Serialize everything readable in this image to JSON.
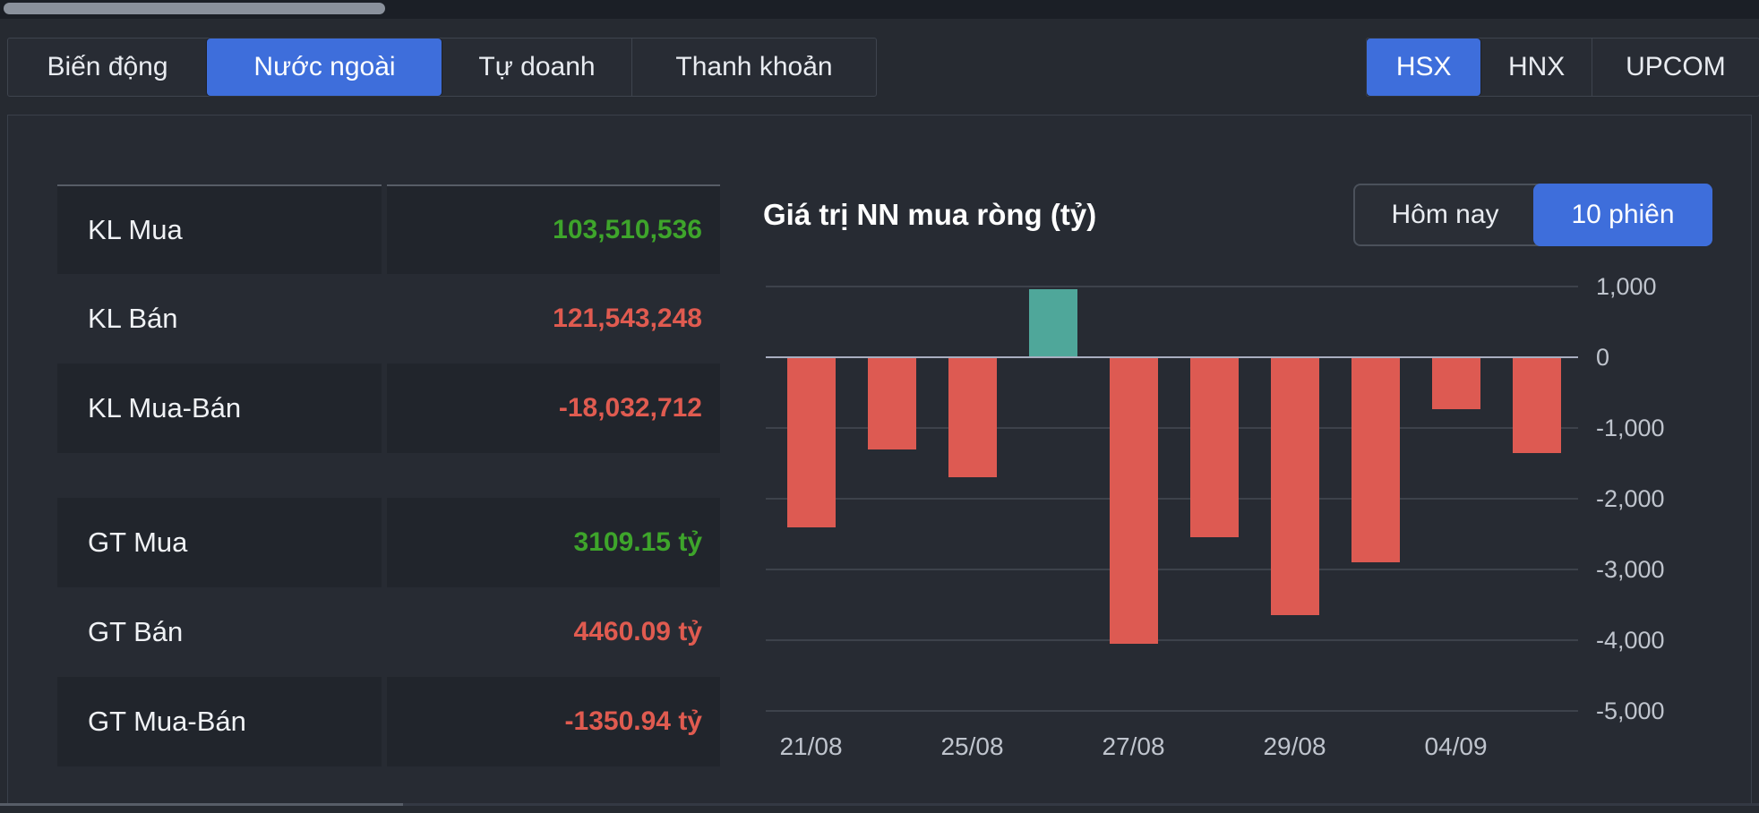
{
  "top_nav": {
    "tabs": [
      {
        "label": "Biến động",
        "active": false
      },
      {
        "label": "Nước ngoài",
        "active": true
      },
      {
        "label": "Tự doanh",
        "active": false
      },
      {
        "label": "Thanh khoản",
        "active": false
      }
    ]
  },
  "exchange_nav": {
    "tabs": [
      {
        "label": "HSX",
        "active": true
      },
      {
        "label": "HNX",
        "active": false
      },
      {
        "label": "UPCOM",
        "active": false
      }
    ]
  },
  "summary": {
    "rows": [
      {
        "label": "KL Mua",
        "value": "103,510,536",
        "trend": "up"
      },
      {
        "label": "KL Bán",
        "value": "121,543,248",
        "trend": "down"
      },
      {
        "label": "KL Mua-Bán",
        "value": "-18,032,712",
        "trend": "down"
      },
      {
        "label": "GT Mua",
        "value": "3109.15 tỷ",
        "trend": "up"
      },
      {
        "label": "GT Bán",
        "value": "4460.09 tỷ",
        "trend": "down"
      },
      {
        "label": "GT Mua-Bán",
        "value": "-1350.94 tỷ",
        "trend": "down"
      }
    ]
  },
  "chart": {
    "title": "Giá trị NN mua ròng (tỷ)",
    "range_toggle": [
      {
        "label": "Hôm nay",
        "active": false
      },
      {
        "label": "10 phiên",
        "active": true
      }
    ]
  },
  "chart_data": {
    "type": "bar",
    "title": "Giá trị NN mua ròng (tỷ)",
    "values": [
      -2400,
      -1300,
      -1700,
      965,
      -4050,
      -2550,
      -3650,
      -2900,
      -740,
      -1351
    ],
    "x_tick_labels": [
      {
        "label": "21/08",
        "bar_index": 0
      },
      {
        "label": "25/08",
        "bar_index": 2
      },
      {
        "label": "27/08",
        "bar_index": 4
      },
      {
        "label": "29/08",
        "bar_index": 6
      },
      {
        "label": "04/09",
        "bar_index": 8
      }
    ],
    "y_ticks": [
      {
        "value": 1000,
        "label": "1,000"
      },
      {
        "value": 0,
        "label": "0"
      },
      {
        "value": -1000,
        "label": "-1,000"
      },
      {
        "value": -2000,
        "label": "-2,000"
      },
      {
        "value": -3000,
        "label": "-3,000"
      },
      {
        "value": -4000,
        "label": "-4,000"
      },
      {
        "value": -5000,
        "label": "-5,000"
      }
    ],
    "ylim": [
      -5000,
      1000
    ],
    "grid": true,
    "legend": false,
    "positive_color": "#4fa79a",
    "negative_color": "#dd5a52"
  },
  "colors": {
    "accent_blue": "#3e6edb",
    "positive_green": "#3ea52b",
    "negative_red": "#e05b50",
    "bar_positive_teal": "#4fa79a",
    "bar_negative_red": "#dd5a52",
    "grid_line": "#3d424b",
    "zero_line": "#a9aec0",
    "axis_label": "#bfc4cd"
  }
}
